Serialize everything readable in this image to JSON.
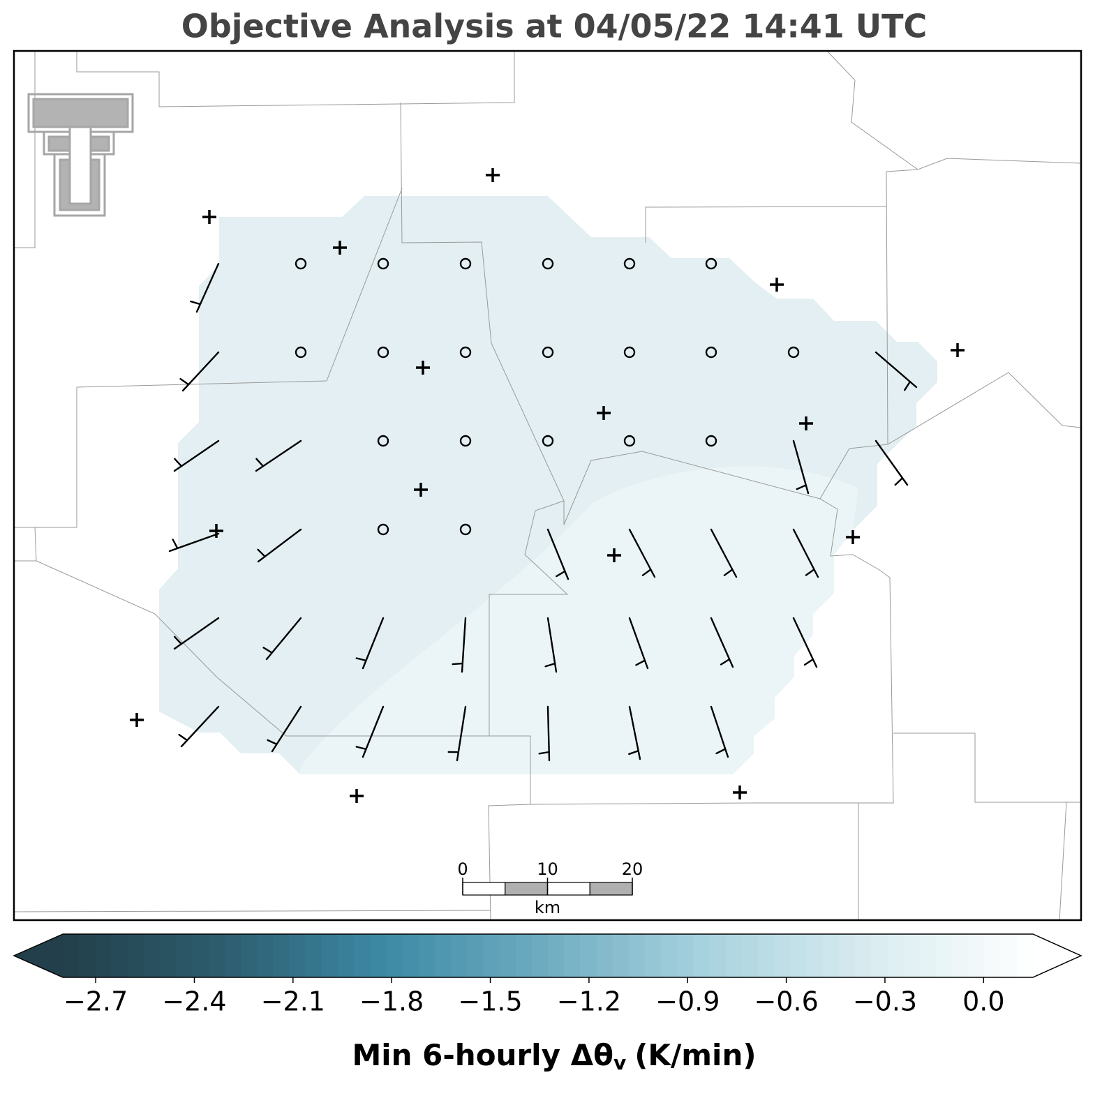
{
  "chart_data": {
    "type": "contour",
    "title": "Objective Analysis at 04/05/22 14:41 UTC",
    "colorbar": {
      "lim": [
        -2.8,
        0.15
      ],
      "ticks": [
        {
          "value": -2.7,
          "label": "−2.7"
        },
        {
          "value": -2.4,
          "label": "−2.4"
        },
        {
          "value": -2.1,
          "label": "−2.1"
        },
        {
          "value": -1.8,
          "label": "−1.8"
        },
        {
          "value": -1.5,
          "label": "−1.5"
        },
        {
          "value": -1.2,
          "label": "−1.2"
        },
        {
          "value": -0.9,
          "label": "−0.9"
        },
        {
          "value": -0.6,
          "label": "−0.6"
        },
        {
          "value": -0.3,
          "label": "−0.3"
        },
        {
          "value": 0.0,
          "label": "0.0"
        }
      ],
      "label": {
        "text": "Min 6-hourly Δθ",
        "subscript": "v",
        "suffix": "(K/min)"
      },
      "colors": [
        "#223f4b",
        "#2e5d6f",
        "#3d8aa6",
        "#70adc2",
        "#a9d3df",
        "#d9ecf0",
        "#ffffff"
      ]
    },
    "scale_bar": {
      "ticks": [
        0,
        10,
        20
      ],
      "unit": "km"
    }
  }
}
